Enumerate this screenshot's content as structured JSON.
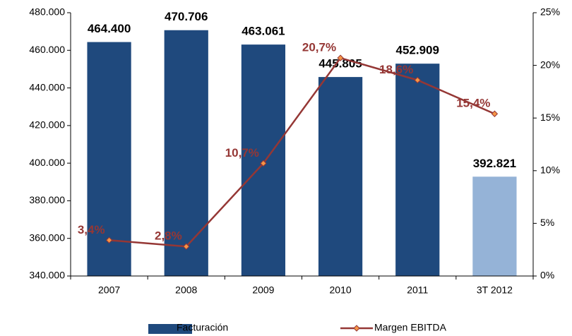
{
  "chart_data": {
    "type": "bar",
    "categories": [
      "2007",
      "2008",
      "2009",
      "2010",
      "2011",
      "3T 2012"
    ],
    "series": [
      {
        "name": "Facturación",
        "type": "bar",
        "colors": [
          "#1f497d",
          "#1f497d",
          "#1f497d",
          "#1f497d",
          "#1f497d",
          "#95b3d7"
        ],
        "values": [
          464400,
          470706,
          463061,
          445805,
          452909,
          392821
        ],
        "value_labels": [
          "464.400",
          "470.706",
          "463.061",
          "445.805",
          "452.909",
          "392.821"
        ]
      },
      {
        "name": "Margen EBITDA",
        "type": "line",
        "axis": "y2",
        "color": "#953735",
        "marker_color": "#f79646",
        "values": [
          3.4,
          2.8,
          10.7,
          20.7,
          18.6,
          15.4
        ],
        "value_labels": [
          "3,4%",
          "2,8%",
          "10,7%",
          "20,7%",
          "18,6%",
          "15,4%"
        ]
      }
    ],
    "ylim": [
      340000,
      480000
    ],
    "yticks": [
      {
        "value": 340000,
        "label": "340.000"
      },
      {
        "value": 360000,
        "label": "360.000"
      },
      {
        "value": 380000,
        "label": "380.000"
      },
      {
        "value": 400000,
        "label": "400.000"
      },
      {
        "value": 420000,
        "label": "420.000"
      },
      {
        "value": 440000,
        "label": "440.000"
      },
      {
        "value": 460000,
        "label": "460.000"
      },
      {
        "value": 480000,
        "label": "480.000"
      }
    ],
    "y2lim": [
      0,
      25
    ],
    "y2ticks": [
      {
        "value": 0,
        "label": "0%"
      },
      {
        "value": 5,
        "label": "5%"
      },
      {
        "value": 10,
        "label": "10%"
      },
      {
        "value": 15,
        "label": "15%"
      },
      {
        "value": 20,
        "label": "20%"
      },
      {
        "value": 25,
        "label": "25%"
      }
    ],
    "legend": "bottom"
  }
}
